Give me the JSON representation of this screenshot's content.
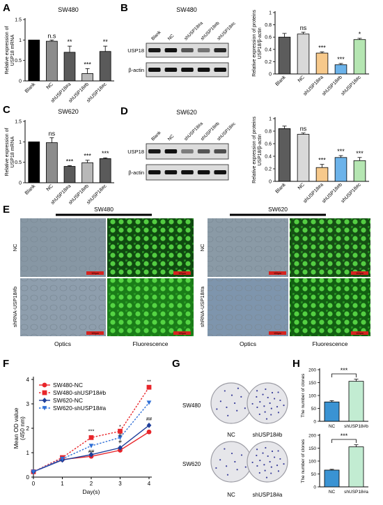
{
  "panels": {
    "A": {
      "letter": "A",
      "title": "SW480"
    },
    "B": {
      "letter": "B",
      "title": "SW480"
    },
    "C": {
      "letter": "C",
      "title": "SW620"
    },
    "D": {
      "letter": "D",
      "title": "SW620"
    },
    "E": {
      "letter": "E",
      "left_group": "SW480",
      "right_group": "SW620",
      "row_nc": "NC",
      "row_sh_left": "shRNA-USP18#b",
      "row_sh_right": "shRNA-USP18#a",
      "col_optics": "Optics",
      "col_fluor": "Fluorescence",
      "scale_bar": "100μm"
    },
    "F": {
      "letter": "F"
    },
    "G": {
      "letter": "G",
      "row1": "SW480",
      "row2": "SW620",
      "col_nc": "NC",
      "col_sh_top": "shUSP18#b",
      "col_sh_bottom": "shUSP18#a"
    },
    "H": {
      "letter": "H"
    }
  },
  "blots": {
    "B": {
      "lanes": [
        "Blank",
        "NC",
        "shUSP18#a",
        "shUSP18#b",
        "shUSP18#c"
      ],
      "rows": [
        "USP18",
        "β-actin"
      ]
    },
    "D": {
      "lanes": [
        "Blank",
        "NC",
        "shUSP18#a",
        "shUSP18#b",
        "shUSP18#c"
      ],
      "rows": [
        "USP18",
        "β-actin"
      ]
    }
  },
  "chart_data": [
    {
      "id": "A",
      "type": "bar",
      "title": "SW480",
      "ylabel": "Relative expression of USP18 mRNA",
      "categories": [
        "Blank",
        "NC",
        "shUSP18#a",
        "shUSP18#b",
        "shUSP18#c"
      ],
      "values": [
        1.0,
        0.97,
        0.7,
        0.18,
        0.72
      ],
      "errors": [
        0,
        0.03,
        0.15,
        0.12,
        0.13
      ],
      "sig": [
        "",
        "n.s",
        "**",
        "***",
        "**"
      ],
      "ylim": [
        0,
        1.5
      ],
      "ticks": [
        0,
        0.5,
        1.0,
        1.5
      ],
      "colors": [
        "#000000",
        "#8c8c8c",
        "#5a5a5a",
        "#b8b8b8",
        "#5a5a5a"
      ]
    },
    {
      "id": "B",
      "type": "bar",
      "ylabel": "Relative expression of proteins USP18/β-actin",
      "categories": [
        "Blank",
        "NC",
        "shUSP18#a",
        "shUSP18#b",
        "shUSP18#c"
      ],
      "values": [
        0.6,
        0.65,
        0.34,
        0.15,
        0.56
      ],
      "errors": [
        0.06,
        0.03,
        0.02,
        0.02,
        0.02
      ],
      "sig": [
        "",
        "ns",
        "***",
        "***",
        "*"
      ],
      "ylim": [
        0,
        1.0
      ],
      "ticks": [
        0,
        0.2,
        0.4,
        0.6,
        0.8,
        1.0
      ],
      "colors": [
        "#5c5c5c",
        "#d9d9d9",
        "#f7c98b",
        "#6cb3ea",
        "#b5e6b2"
      ]
    },
    {
      "id": "C",
      "type": "bar",
      "title": "SW620",
      "ylabel": "Relative expression of USP18 mRNA",
      "categories": [
        "Blank",
        "NC",
        "shUSP18#a",
        "shUSP18#b",
        "shUSP18#c"
      ],
      "values": [
        1.0,
        0.98,
        0.4,
        0.49,
        0.59
      ],
      "errors": [
        0,
        0.12,
        0.02,
        0.06,
        0.02
      ],
      "sig": [
        "",
        "ns",
        "***",
        "***",
        "***"
      ],
      "ylim": [
        0,
        1.5
      ],
      "ticks": [
        0,
        0.5,
        1.0,
        1.5
      ],
      "colors": [
        "#000000",
        "#8c8c8c",
        "#5a5a5a",
        "#b8b8b8",
        "#5a5a5a"
      ]
    },
    {
      "id": "D",
      "type": "bar",
      "ylabel": "Relative expression of proteins USP18/β-actin",
      "categories": [
        "Blank",
        "NC",
        "shUSP18#a",
        "shUSP18#b",
        "shUSP18#c"
      ],
      "values": [
        0.84,
        0.75,
        0.22,
        0.38,
        0.33
      ],
      "errors": [
        0.04,
        0.02,
        0.05,
        0.03,
        0.05
      ],
      "sig": [
        "",
        "ns",
        "***",
        "***",
        "***"
      ],
      "ylim": [
        0,
        1.0
      ],
      "ticks": [
        0,
        0.2,
        0.4,
        0.6,
        0.8,
        1.0
      ],
      "colors": [
        "#5c5c5c",
        "#d9d9d9",
        "#f7c98b",
        "#6cb3ea",
        "#b5e6b2"
      ]
    },
    {
      "id": "F",
      "type": "line",
      "xlabel": "Day(s)",
      "ylabel": "Mean OD value (450 nm)",
      "x": [
        0,
        1,
        2,
        3,
        4
      ],
      "xlim": [
        0,
        4
      ],
      "ylim": [
        0,
        4
      ],
      "ticks": [
        0,
        1,
        2,
        3,
        4
      ],
      "series": [
        {
          "name": "SW480-NC",
          "values": [
            0.22,
            0.72,
            0.85,
            1.1,
            1.85
          ],
          "color": "#e8252a",
          "marker": "circle",
          "dashed": false
        },
        {
          "name": "SW480-shUSP18#b",
          "values": [
            0.22,
            0.8,
            1.62,
            1.88,
            3.68
          ],
          "color": "#e8252a",
          "marker": "square",
          "dashed": true
        },
        {
          "name": "SW620-NC",
          "values": [
            0.22,
            0.7,
            0.92,
            1.2,
            2.12
          ],
          "color": "#1f3f9a",
          "marker": "diamond",
          "dashed": false
        },
        {
          "name": "SW620-shUSP18#a",
          "values": [
            0.22,
            0.75,
            1.28,
            1.62,
            3.05
          ],
          "color": "#2f6fd6",
          "marker": "triangle",
          "dashed": true
        }
      ],
      "annotations": [
        {
          "x": 2,
          "y": 1.82,
          "text": "***"
        },
        {
          "x": 2,
          "y": 0.98,
          "text": "##"
        },
        {
          "x": 3,
          "y": 2.0,
          "text": "*"
        },
        {
          "x": 3,
          "y": 1.66,
          "text": "#"
        },
        {
          "x": 3,
          "y": 1.38,
          "text": "#"
        },
        {
          "x": 4,
          "y": 3.85,
          "text": "**"
        },
        {
          "x": 4,
          "y": 2.32,
          "text": "##"
        }
      ]
    },
    {
      "id": "H1",
      "type": "bar",
      "ylabel": "The number of clones",
      "categories": [
        "NC",
        "shUSP18#b"
      ],
      "values": [
        75,
        155
      ],
      "errors": [
        5,
        8
      ],
      "ylim": [
        0,
        200
      ],
      "ticks": [
        0,
        50,
        100,
        150,
        200
      ],
      "colors": [
        "#3a93d3",
        "#c2ecd2"
      ],
      "bracket": "***"
    },
    {
      "id": "H2",
      "type": "bar",
      "ylabel": "The number of clones",
      "categories": [
        "NC",
        "shUSP18#a"
      ],
      "values": [
        65,
        155
      ],
      "errors": [
        3,
        8
      ],
      "ylim": [
        0,
        200
      ],
      "ticks": [
        0,
        50,
        100,
        150,
        200
      ],
      "colors": [
        "#3a93d3",
        "#c2ecd2"
      ],
      "bracket": "***"
    }
  ]
}
